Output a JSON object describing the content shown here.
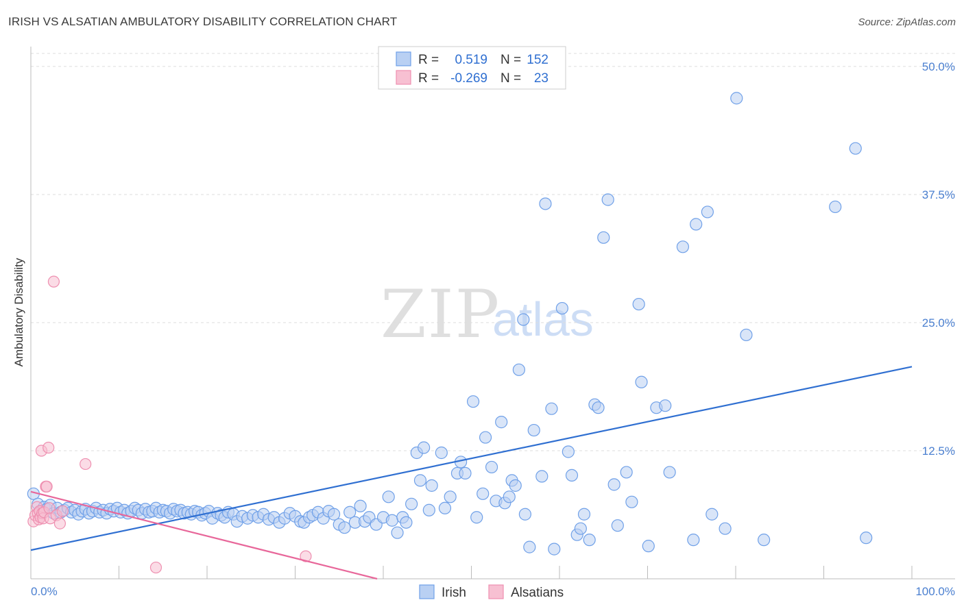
{
  "header": {
    "title": "IRISH VS ALSATIAN AMBULATORY DISABILITY CORRELATION CHART",
    "source": "Source: ZipAtlas.com"
  },
  "watermark": {
    "zip": "ZIP",
    "atlas": "atlas"
  },
  "stats_legend": {
    "rows": [
      {
        "r_label": "R =",
        "r_value": "0.519",
        "n_label": "N =",
        "n_value": "152",
        "color": "#6fa0e8"
      },
      {
        "r_label": "R =",
        "r_value": "-0.269",
        "n_label": "N =",
        "n_value": "23",
        "color": "#f29ab8"
      }
    ]
  },
  "colors": {
    "irish_fill": "#b9d0f3",
    "irish_stroke": "#6fa0e8",
    "irish_line": "#2f6fd1",
    "alsatian_fill": "#f7c0d2",
    "alsatian_stroke": "#ee8fb0",
    "alsatian_line": "#e8679a",
    "tick_label": "#4a7fd0",
    "grid": "#dddddd"
  },
  "chart_data": {
    "type": "scatter",
    "title": "IRISH VS ALSATIAN AMBULATORY DISABILITY CORRELATION CHART",
    "xlabel": "",
    "ylabel": "Ambulatory Disability",
    "xlim": [
      0,
      100
    ],
    "ylim": [
      0,
      50
    ],
    "x_tick_labels": [
      "0.0%",
      "100.0%"
    ],
    "y_ticks": [
      12.5,
      25.0,
      37.5,
      50.0
    ],
    "y_tick_labels": [
      "12.5%",
      "25.0%",
      "37.5%",
      "50.0%"
    ],
    "grid": "horizontal dashed",
    "legend_position": "bottom-center",
    "series": [
      {
        "name": "Irish",
        "trend": {
          "x": [
            0,
            100
          ],
          "y": [
            2.8,
            20.7
          ]
        },
        "points": [
          [
            0.3,
            8.3
          ],
          [
            0.8,
            7.3
          ],
          [
            1.2,
            6.6
          ],
          [
            1.5,
            7.0
          ],
          [
            1.8,
            6.8
          ],
          [
            2.2,
            7.2
          ],
          [
            2.6,
            6.4
          ],
          [
            3.0,
            6.9
          ],
          [
            3.4,
            6.5
          ],
          [
            3.8,
            6.7
          ],
          [
            4.2,
            6.9
          ],
          [
            4.6,
            6.5
          ],
          [
            5.0,
            6.7
          ],
          [
            5.4,
            6.3
          ],
          [
            5.8,
            6.6
          ],
          [
            6.2,
            6.8
          ],
          [
            6.6,
            6.4
          ],
          [
            7.0,
            6.6
          ],
          [
            7.4,
            6.9
          ],
          [
            7.8,
            6.5
          ],
          [
            8.2,
            6.7
          ],
          [
            8.6,
            6.4
          ],
          [
            9.0,
            6.8
          ],
          [
            9.4,
            6.6
          ],
          [
            9.8,
            6.9
          ],
          [
            10.2,
            6.5
          ],
          [
            10.6,
            6.7
          ],
          [
            11.0,
            6.4
          ],
          [
            11.4,
            6.6
          ],
          [
            11.8,
            6.9
          ],
          [
            12.2,
            6.7
          ],
          [
            12.6,
            6.4
          ],
          [
            13.0,
            6.8
          ],
          [
            13.4,
            6.5
          ],
          [
            13.8,
            6.6
          ],
          [
            14.2,
            6.9
          ],
          [
            14.6,
            6.5
          ],
          [
            15.0,
            6.7
          ],
          [
            15.4,
            6.6
          ],
          [
            15.8,
            6.4
          ],
          [
            16.2,
            6.8
          ],
          [
            16.6,
            6.6
          ],
          [
            17.0,
            6.7
          ],
          [
            17.4,
            6.4
          ],
          [
            17.8,
            6.5
          ],
          [
            18.2,
            6.3
          ],
          [
            18.6,
            6.6
          ],
          [
            19.0,
            6.5
          ],
          [
            19.4,
            6.2
          ],
          [
            19.8,
            6.4
          ],
          [
            20.2,
            6.6
          ],
          [
            20.6,
            5.9
          ],
          [
            21.2,
            6.4
          ],
          [
            21.6,
            6.2
          ],
          [
            22.0,
            6.0
          ],
          [
            22.4,
            6.5
          ],
          [
            23.0,
            6.3
          ],
          [
            23.4,
            5.6
          ],
          [
            24.0,
            6.1
          ],
          [
            24.6,
            5.9
          ],
          [
            25.2,
            6.2
          ],
          [
            25.8,
            6.0
          ],
          [
            26.4,
            6.3
          ],
          [
            27.0,
            5.8
          ],
          [
            27.6,
            6.0
          ],
          [
            28.2,
            5.5
          ],
          [
            28.8,
            5.9
          ],
          [
            29.4,
            6.4
          ],
          [
            30.0,
            6.1
          ],
          [
            30.6,
            5.6
          ],
          [
            31.0,
            5.5
          ],
          [
            31.6,
            6.0
          ],
          [
            32.0,
            6.2
          ],
          [
            32.6,
            6.5
          ],
          [
            33.2,
            5.9
          ],
          [
            33.8,
            6.6
          ],
          [
            34.4,
            6.3
          ],
          [
            35.0,
            5.3
          ],
          [
            35.6,
            5.0
          ],
          [
            36.2,
            6.5
          ],
          [
            36.8,
            5.5
          ],
          [
            37.4,
            7.1
          ],
          [
            37.9,
            5.6
          ],
          [
            38.4,
            6.0
          ],
          [
            39.2,
            5.3
          ],
          [
            40.0,
            6.0
          ],
          [
            40.6,
            8.0
          ],
          [
            41.0,
            5.7
          ],
          [
            41.6,
            4.5
          ],
          [
            42.2,
            6.0
          ],
          [
            42.6,
            5.5
          ],
          [
            43.2,
            7.3
          ],
          [
            43.8,
            12.3
          ],
          [
            44.2,
            9.6
          ],
          [
            44.6,
            12.8
          ],
          [
            45.2,
            6.7
          ],
          [
            45.5,
            9.1
          ],
          [
            46.6,
            12.3
          ],
          [
            47.0,
            6.9
          ],
          [
            47.6,
            8.0
          ],
          [
            48.4,
            10.3
          ],
          [
            48.8,
            11.4
          ],
          [
            49.3,
            10.3
          ],
          [
            50.2,
            17.3
          ],
          [
            50.6,
            6.0
          ],
          [
            51.3,
            8.3
          ],
          [
            51.6,
            13.8
          ],
          [
            52.3,
            10.9
          ],
          [
            52.8,
            7.6
          ],
          [
            53.4,
            15.3
          ],
          [
            53.8,
            7.4
          ],
          [
            54.3,
            8.0
          ],
          [
            54.6,
            9.6
          ],
          [
            55.0,
            9.1
          ],
          [
            55.4,
            20.4
          ],
          [
            55.9,
            25.3
          ],
          [
            56.1,
            6.3
          ],
          [
            56.6,
            3.1
          ],
          [
            57.1,
            14.5
          ],
          [
            58.0,
            10.0
          ],
          [
            58.4,
            36.6
          ],
          [
            59.1,
            16.6
          ],
          [
            59.4,
            2.9
          ],
          [
            60.3,
            26.4
          ],
          [
            61.0,
            12.4
          ],
          [
            61.4,
            10.1
          ],
          [
            62.0,
            4.3
          ],
          [
            62.4,
            4.9
          ],
          [
            62.8,
            6.3
          ],
          [
            63.4,
            3.8
          ],
          [
            64.0,
            17.0
          ],
          [
            64.4,
            16.7
          ],
          [
            65.0,
            33.3
          ],
          [
            65.5,
            37.0
          ],
          [
            66.2,
            9.2
          ],
          [
            66.6,
            5.2
          ],
          [
            67.6,
            10.4
          ],
          [
            68.2,
            7.5
          ],
          [
            69.0,
            26.8
          ],
          [
            69.3,
            19.2
          ],
          [
            70.1,
            3.2
          ],
          [
            71.0,
            16.7
          ],
          [
            72.0,
            16.9
          ],
          [
            72.5,
            10.4
          ],
          [
            74.0,
            32.4
          ],
          [
            75.2,
            3.8
          ],
          [
            75.5,
            34.6
          ],
          [
            76.8,
            35.8
          ],
          [
            77.3,
            6.3
          ],
          [
            78.8,
            4.9
          ],
          [
            80.1,
            46.9
          ],
          [
            81.2,
            23.8
          ],
          [
            83.2,
            3.8
          ],
          [
            91.3,
            36.3
          ],
          [
            93.6,
            42.0
          ],
          [
            94.8,
            4.0
          ]
        ]
      },
      {
        "name": "Alsatians",
        "trend": {
          "x": [
            0,
            39.3
          ],
          "y": [
            8.5,
            0
          ]
        },
        "points": [
          [
            0.3,
            5.6
          ],
          [
            0.5,
            6.2
          ],
          [
            0.7,
            7.0
          ],
          [
            0.8,
            6.4
          ],
          [
            0.9,
            5.8
          ],
          [
            1.0,
            6.6
          ],
          [
            1.1,
            6.0
          ],
          [
            1.2,
            12.5
          ],
          [
            1.3,
            6.4
          ],
          [
            1.4,
            5.9
          ],
          [
            1.5,
            6.5
          ],
          [
            1.7,
            9.0
          ],
          [
            1.8,
            9.0
          ],
          [
            2.0,
            12.8
          ],
          [
            2.1,
            6.9
          ],
          [
            2.2,
            5.9
          ],
          [
            2.6,
            29.0
          ],
          [
            2.9,
            6.2
          ],
          [
            3.3,
            5.4
          ],
          [
            3.6,
            6.6
          ],
          [
            6.2,
            11.2
          ],
          [
            14.2,
            1.1
          ],
          [
            31.2,
            2.2
          ]
        ]
      }
    ]
  },
  "bottom_legend": {
    "items": [
      {
        "label": "Irish"
      },
      {
        "label": "Alsatians"
      }
    ]
  }
}
